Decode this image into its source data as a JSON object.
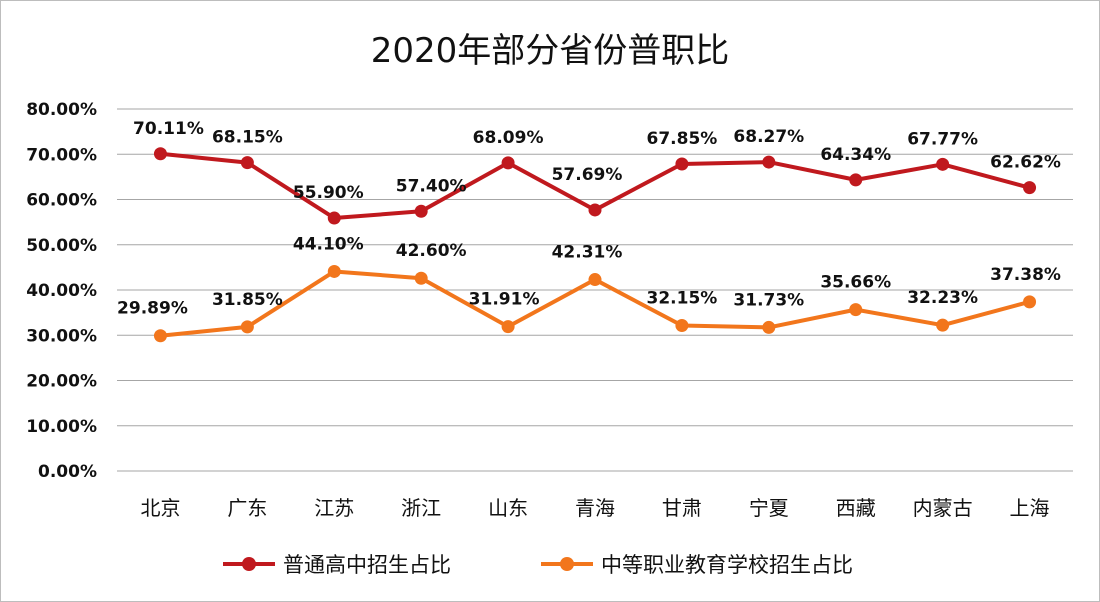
{
  "chart_data": {
    "type": "line",
    "title": "2020年部分省份普职比",
    "categories": [
      "北京",
      "广东",
      "江苏",
      "浙江",
      "山东",
      "青海",
      "甘肃",
      "宁夏",
      "西藏",
      "内蒙古",
      "上海"
    ],
    "series": [
      {
        "name": "普通高中招生占比",
        "color": "#c0191e",
        "values": [
          70.11,
          68.15,
          55.9,
          57.4,
          68.09,
          57.69,
          67.85,
          68.27,
          64.34,
          67.77,
          62.62
        ],
        "labels": [
          "70.11%",
          "68.15%",
          "55.90%",
          "57.40%",
          "68.09%",
          "57.69%",
          "67.85%",
          "68.27%",
          "64.34%",
          "67.77%",
          "62.62%"
        ]
      },
      {
        "name": "中等职业教育学校招生占比",
        "color": "#f2761c",
        "values": [
          29.89,
          31.85,
          44.1,
          42.6,
          31.91,
          42.31,
          32.15,
          31.73,
          35.66,
          32.23,
          37.38
        ],
        "labels": [
          "29.89%",
          "31.85%",
          "44.10%",
          "42.60%",
          "31.91%",
          "42.31%",
          "32.15%",
          "31.73%",
          "35.66%",
          "32.23%",
          "37.38%"
        ]
      }
    ],
    "y_ticks": [
      "0.00%",
      "10.00%",
      "20.00%",
      "30.00%",
      "40.00%",
      "50.00%",
      "60.00%",
      "70.00%",
      "80.00%"
    ],
    "ylim": [
      0,
      80
    ],
    "grid": true,
    "legend_position": "bottom"
  }
}
